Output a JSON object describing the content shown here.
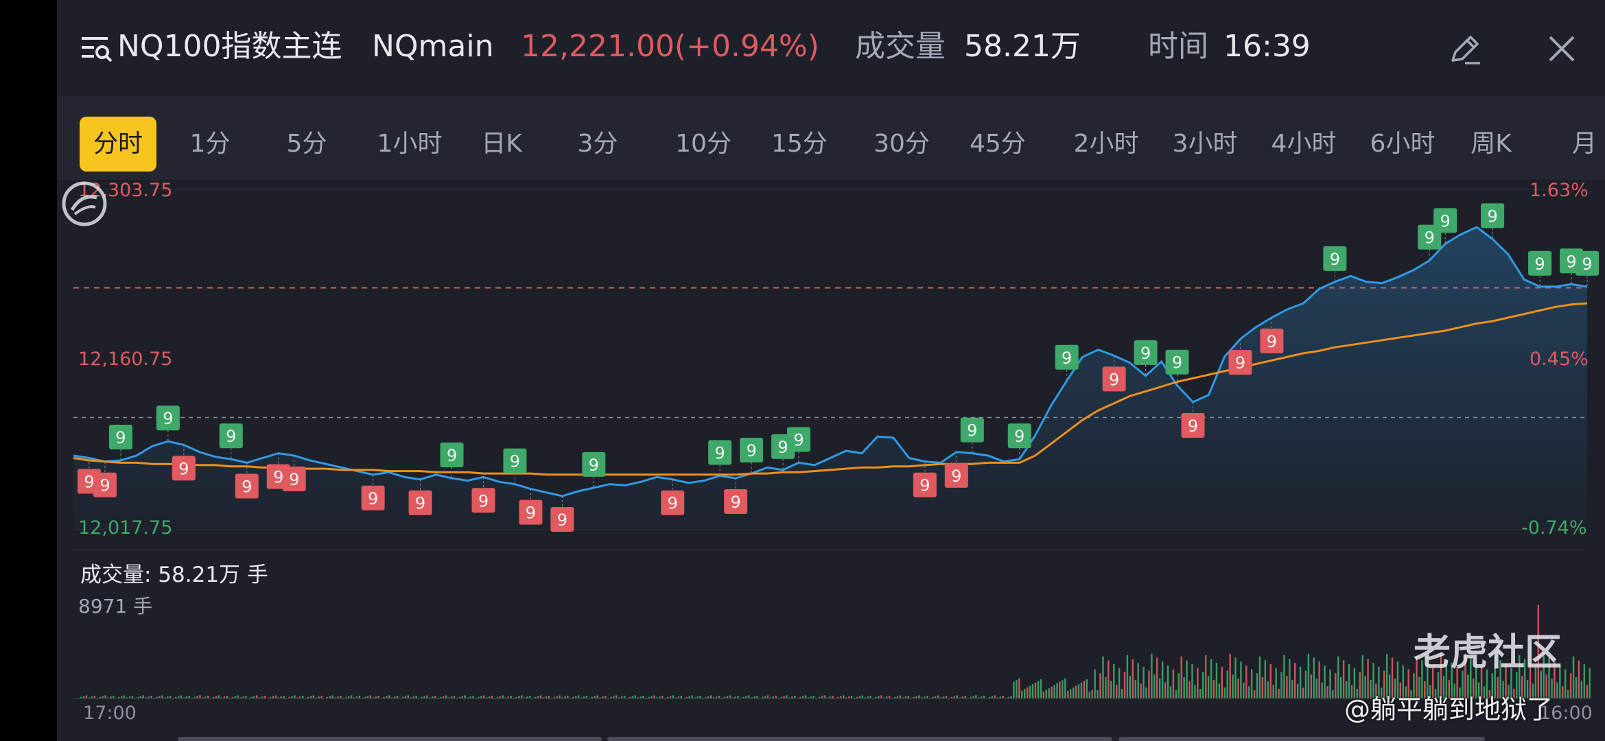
{
  "header": {
    "symbol_name": "NQ100指数主连",
    "symbol_code": "NQmain",
    "price": "12,221.00(+0.94%)",
    "volume_label": "成交量",
    "volume_value": "58.21万",
    "time_label": "时间",
    "time_value": "16:39"
  },
  "tabs": [
    "分时",
    "1分",
    "5分",
    "1小时",
    "日K",
    "3分",
    "10分",
    "15分",
    "30分",
    "45分",
    "2小时",
    "3小时",
    "4小时",
    "6小时",
    "周K",
    "月"
  ],
  "active_tab": "分时",
  "chart_data": {
    "type": "line",
    "y_price_labels": [
      "12,303.75",
      "12,160.75",
      "12,017.75"
    ],
    "y_pct_labels": [
      "1.63%",
      "0.45%",
      "-0.74%"
    ],
    "x_labels": [
      "17:00",
      "16:00"
    ],
    "reference_price": "12,221.00",
    "ylim": [
      12017.75,
      12303.75
    ],
    "price_series": [
      12080,
      12078,
      12075,
      12076,
      12080,
      12088,
      12092,
      12089,
      12083,
      12079,
      12077,
      12074,
      12078,
      12082,
      12080,
      12076,
      12073,
      12070,
      12067,
      12064,
      12066,
      12062,
      12060,
      12064,
      12061,
      12059,
      12062,
      12058,
      12056,
      12052,
      12049,
      12046,
      12050,
      12053,
      12056,
      12055,
      12058,
      12062,
      12060,
      12057,
      12059,
      12063,
      12061,
      12065,
      12070,
      12068,
      12074,
      12072,
      12078,
      12084,
      12082,
      12096,
      12095,
      12078,
      12075,
      12074,
      12083,
      12082,
      12080,
      12075,
      12077,
      12097,
      12122,
      12143,
      12163,
      12169,
      12164,
      12158,
      12147,
      12159,
      12139,
      12125,
      12131,
      12163,
      12178,
      12188,
      12196,
      12203,
      12208,
      12220,
      12226,
      12231,
      12226,
      12225,
      12230,
      12236,
      12244,
      12258,
      12266,
      12272,
      12262,
      12249,
      12228,
      12222,
      12222,
      12224,
      12222
    ],
    "avg_series": [
      12078,
      12076,
      12075,
      12074,
      12074,
      12073,
      12073,
      12073,
      12072,
      12072,
      12071,
      12071,
      12070,
      12070,
      12069,
      12069,
      12069,
      12068,
      12068,
      12068,
      12067,
      12067,
      12067,
      12066,
      12066,
      12066,
      12065,
      12065,
      12065,
      12065,
      12064,
      12064,
      12064,
      12064,
      12064,
      12064,
      12064,
      12064,
      12064,
      12064,
      12064,
      12064,
      12064,
      12065,
      12065,
      12066,
      12066,
      12067,
      12068,
      12069,
      12070,
      12070,
      12071,
      12071,
      12072,
      12073,
      12073,
      12073,
      12074,
      12074,
      12074,
      12080,
      12090,
      12100,
      12110,
      12118,
      12124,
      12130,
      12134,
      12138,
      12142,
      12145,
      12148,
      12151,
      12154,
      12157,
      12160,
      12163,
      12166,
      12168,
      12171,
      12173,
      12175,
      12177,
      12179,
      12181,
      12183,
      12185,
      12188,
      12191,
      12193,
      12196,
      12199,
      12202,
      12205,
      12207,
      12208
    ],
    "marker_up": [
      "9",
      "9",
      "9",
      "9",
      "9",
      "9",
      "9",
      "9",
      "9",
      "9",
      "9",
      "9",
      "9",
      "9",
      "9",
      "9",
      "9",
      "9",
      "9",
      "9",
      "9",
      "9"
    ],
    "marker_down": [
      "9",
      "9",
      "9",
      "9",
      "9",
      "9",
      "9",
      "9",
      "9",
      "9",
      "9",
      "9",
      "9",
      "9",
      "9",
      "9",
      "9",
      "9",
      "9"
    ]
  },
  "volume_panel": {
    "title": "成交量:  58.21万 手",
    "max_label": "8971 手"
  },
  "watermark": {
    "brand": "老虎社区",
    "credit": "@躺平躺到地狱了"
  },
  "colors": {
    "up": "#3fa96a",
    "down": "#e05a5f",
    "price_line": "#2f9be5",
    "avg_line": "#f0901a",
    "tab_active": "#f7c51e"
  }
}
